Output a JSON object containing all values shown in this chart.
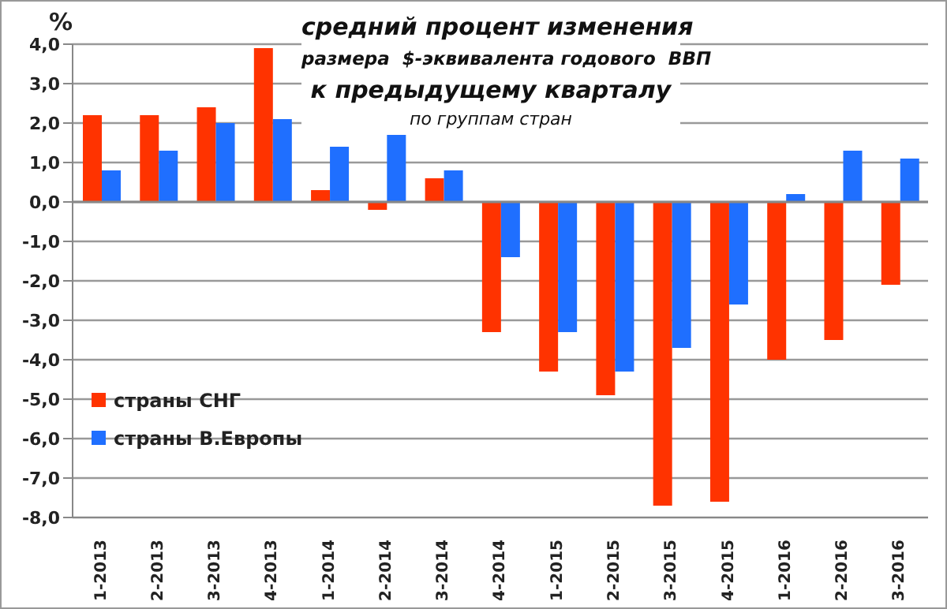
{
  "chart_data": {
    "type": "bar",
    "title": "средний процент изменения\nразмера  $-эквивалента годового  ВВП\nк предыдущему кварталу",
    "subtitle": "по группам стран",
    "ylabel": "%",
    "categories": [
      "1-2013",
      "2-2013",
      "3-2013",
      "4-2013",
      "1-2014",
      "2-2014",
      "3-2014",
      "4-2014",
      "1-2015",
      "2-2015",
      "3-2015",
      "4-2015",
      "1-2016",
      "2-2016",
      "3-2016"
    ],
    "series": [
      {
        "name": "страны СНГ",
        "color": "#ff3300",
        "values": [
          2.2,
          2.2,
          2.4,
          3.9,
          0.3,
          -0.2,
          0.6,
          -3.3,
          -4.3,
          -4.9,
          -7.7,
          -7.6,
          -4.0,
          -3.5,
          -2.1
        ]
      },
      {
        "name": "страны В.Европы",
        "color": "#1f6fff",
        "values": [
          0.8,
          1.3,
          2.0,
          2.1,
          1.4,
          1.7,
          0.8,
          -1.4,
          -3.3,
          -4.3,
          -3.7,
          -2.6,
          0.2,
          1.3,
          1.1
        ]
      }
    ],
    "ylim": [
      -8,
      4
    ],
    "yticks": [
      {
        "value": -8,
        "label": "-8,0"
      },
      {
        "value": -7,
        "label": "-7,0"
      },
      {
        "value": -6,
        "label": "-6,0"
      },
      {
        "value": -5,
        "label": "-5,0"
      },
      {
        "value": -4,
        "label": "-4,0"
      },
      {
        "value": -3,
        "label": "-3,0"
      },
      {
        "value": -2,
        "label": "-2,0"
      },
      {
        "value": -1,
        "label": "-1,0"
      },
      {
        "value": 0,
        "label": "0,0"
      },
      {
        "value": 1,
        "label": "1,0"
      },
      {
        "value": 2,
        "label": "2,0"
      },
      {
        "value": 3,
        "label": "3,0"
      },
      {
        "value": 4,
        "label": "4,0"
      }
    ],
    "grid": "y",
    "legend": "left"
  }
}
